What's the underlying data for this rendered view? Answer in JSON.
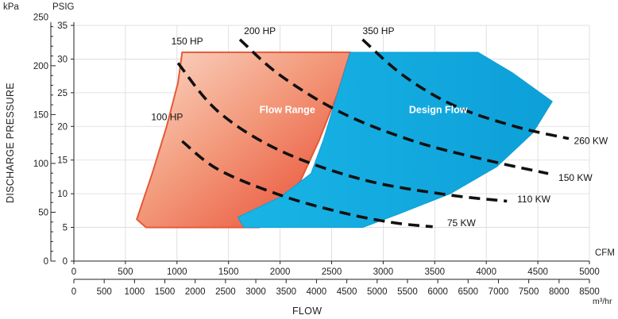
{
  "chart_data": {
    "type": "line",
    "title": "",
    "xlabel": "FLOW",
    "ylabel": "DISCHARGE PRESSURE",
    "grid": true,
    "x_axis_primary": {
      "unit": "CFM",
      "range": [
        0,
        5000
      ],
      "ticks": [
        "0",
        "500",
        "1000",
        "1500",
        "2000",
        "2500",
        "3000",
        "3500",
        "4000",
        "4500",
        "5000"
      ]
    },
    "x_axis_secondary": {
      "unit": "m³/hr",
      "range": [
        0,
        8500
      ],
      "ticks": [
        "0",
        "500",
        "1000",
        "1500",
        "2000",
        "2500",
        "3000",
        "3500",
        "4000",
        "4500",
        "5000",
        "5500",
        "6000",
        "6500",
        "7000",
        "7500",
        "8000",
        "8500"
      ]
    },
    "y_axis_psig": {
      "unit": "PSIG",
      "range": [
        0,
        35
      ],
      "ticks": [
        "0",
        "5",
        "10",
        "15",
        "20",
        "25",
        "30",
        "35"
      ]
    },
    "y_axis_kpa": {
      "unit": "kPa",
      "ticks": [
        {
          "value": 0,
          "label": "0"
        },
        {
          "value": 50,
          "label": "50"
        },
        {
          "value": 100,
          "label": "100"
        },
        {
          "value": 150,
          "label": "150"
        },
        {
          "value": 200,
          "label": "200"
        },
        {
          "value": 250,
          "label": "250"
        }
      ]
    },
    "regions": [
      {
        "name": "Flow Range",
        "label": "Flow Range",
        "label_at": {
          "x": 1800,
          "y": 22
        },
        "color_light": "#fbd9c8",
        "color_dark": "#e8452c",
        "stroke": "#e35a38",
        "outline": [
          [
            1050,
            31
          ],
          [
            2680,
            31
          ],
          [
            2560,
            25
          ],
          [
            2380,
            18
          ],
          [
            2200,
            12
          ],
          [
            1950,
            7
          ],
          [
            1800,
            5
          ],
          [
            700,
            5
          ],
          [
            610,
            6.2
          ],
          [
            760,
            13
          ],
          [
            900,
            20
          ],
          [
            1010,
            26.5
          ]
        ]
      },
      {
        "name": "Design Flow",
        "label": "Design Flow",
        "label_at": {
          "x": 3250,
          "y": 22
        },
        "color": "#0d9fd8",
        "color_light": "#19b5e6",
        "outline": [
          [
            2680,
            31
          ],
          [
            3920,
            31
          ],
          [
            4250,
            28
          ],
          [
            4640,
            23.7
          ],
          [
            4450,
            19
          ],
          [
            4100,
            14
          ],
          [
            3650,
            10
          ],
          [
            3150,
            7
          ],
          [
            2800,
            5
          ],
          [
            1650,
            5
          ],
          [
            1590,
            6.5
          ],
          [
            2000,
            9.5
          ],
          [
            2300,
            13
          ],
          [
            2420,
            18
          ],
          [
            2560,
            25
          ]
        ]
      }
    ],
    "series": [
      {
        "name": "100 HP",
        "label": "100 HP",
        "label_at": {
          "x": 750,
          "y": 20.9
        },
        "points": [
          [
            1050,
            17.8
          ],
          [
            1400,
            13.6
          ],
          [
            2000,
            9.8
          ],
          [
            2600,
            7.2
          ],
          [
            3100,
            5.7
          ],
          [
            3480,
            5.1
          ]
        ]
      },
      {
        "name": "75 KW",
        "label": "75 KW",
        "label_at": {
          "x": 3620,
          "y": 5.2
        }
      },
      {
        "name": "150 HP",
        "label": "150 HP",
        "label_at": {
          "x": 945,
          "y": 32.2
        },
        "points": [
          [
            1010,
            29.4
          ],
          [
            1400,
            22.2
          ],
          [
            2000,
            16.4
          ],
          [
            2800,
            12.1
          ],
          [
            3600,
            9.9
          ],
          [
            4200,
            8.9
          ]
        ]
      },
      {
        "name": "110 KW",
        "label": "110 KW",
        "label_at": {
          "x": 4300,
          "y": 8.7
        }
      },
      {
        "name": "200 HP",
        "label": "200 HP",
        "label_at": {
          "x": 1650,
          "y": 33.7
        },
        "points": [
          [
            1610,
            32.9
          ],
          [
            2000,
            27.6
          ],
          [
            2600,
            22.0
          ],
          [
            3300,
            17.8
          ],
          [
            4000,
            15.0
          ],
          [
            4600,
            13.0
          ]
        ]
      },
      {
        "name": "150 KW",
        "label": "150 KW",
        "label_at": {
          "x": 4700,
          "y": 11.9
        }
      },
      {
        "name": "350 HP",
        "label": "350 HP",
        "label_at": {
          "x": 2800,
          "y": 33.7
        },
        "points": [
          [
            2800,
            32.9
          ],
          [
            3200,
            27.5
          ],
          [
            3700,
            23.0
          ],
          [
            4300,
            19.9
          ],
          [
            4800,
            18.2
          ]
        ]
      },
      {
        "name": "260 KW",
        "label": "260 KW",
        "label_at": {
          "x": 4850,
          "y": 17.4
        }
      }
    ]
  }
}
